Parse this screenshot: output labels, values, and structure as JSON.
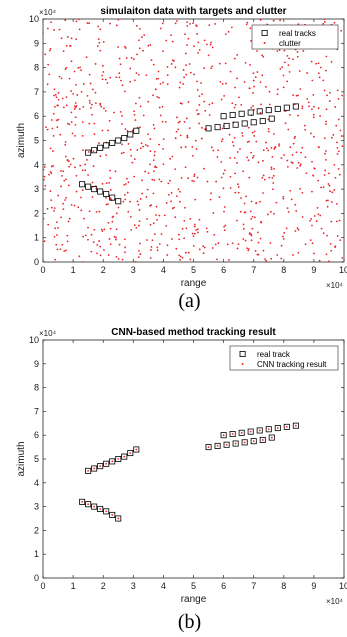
{
  "chart_data": [
    {
      "type": "scatter",
      "title": "simulaiton data with targets and clutter",
      "xlabel": "range",
      "ylabel": "azimuth",
      "x_exponent": "×10⁴",
      "y_exponent": "×10⁴",
      "xlim": [
        0,
        10
      ],
      "ylim": [
        0,
        10
      ],
      "xticks": [
        "0",
        "1",
        "2",
        "3",
        "4",
        "5",
        "6",
        "7",
        "8",
        "9",
        "10"
      ],
      "yticks": [
        "0",
        "1",
        "2",
        "3",
        "4",
        "5",
        "6",
        "7",
        "8",
        "9",
        "10"
      ],
      "legend_position": "top-right",
      "caption": "(a)",
      "series": [
        {
          "name": "real tracks",
          "marker": "square",
          "color": "#000000",
          "points": [
            [
              1.5,
              4.5
            ],
            [
              1.7,
              4.6
            ],
            [
              1.9,
              4.7
            ],
            [
              2.1,
              4.8
            ],
            [
              2.3,
              4.9
            ],
            [
              2.5,
              5.0
            ],
            [
              2.7,
              5.1
            ],
            [
              2.9,
              5.25
            ],
            [
              3.1,
              5.4
            ],
            [
              5.5,
              5.5
            ],
            [
              5.8,
              5.55
            ],
            [
              6.1,
              5.6
            ],
            [
              6.4,
              5.65
            ],
            [
              6.7,
              5.7
            ],
            [
              7.0,
              5.75
            ],
            [
              7.3,
              5.8
            ],
            [
              7.6,
              5.9
            ],
            [
              6.0,
              6.0
            ],
            [
              6.3,
              6.05
            ],
            [
              6.6,
              6.1
            ],
            [
              6.9,
              6.15
            ],
            [
              7.2,
              6.2
            ],
            [
              7.5,
              6.25
            ],
            [
              7.8,
              6.3
            ],
            [
              8.1,
              6.35
            ],
            [
              8.4,
              6.4
            ],
            [
              1.3,
              3.2
            ],
            [
              1.5,
              3.1
            ],
            [
              1.7,
              3.0
            ],
            [
              1.9,
              2.9
            ],
            [
              2.1,
              2.8
            ],
            [
              2.3,
              2.65
            ],
            [
              2.5,
              2.5
            ]
          ]
        },
        {
          "name": "clutter",
          "marker": "dot",
          "color": "#e8262c",
          "count": 1000,
          "distribution": "uniform",
          "range": [
            [
              0,
              10
            ],
            [
              0,
              10
            ]
          ]
        }
      ]
    },
    {
      "type": "scatter",
      "title": "CNN-based method tracking result",
      "xlabel": "range",
      "ylabel": "azimuth",
      "x_exponent": "×10⁴",
      "y_exponent": "×10⁴",
      "xlim": [
        0,
        10
      ],
      "ylim": [
        0,
        10
      ],
      "xticks": [
        "0",
        "1",
        "2",
        "3",
        "4",
        "5",
        "6",
        "7",
        "8",
        "9",
        "10"
      ],
      "yticks": [
        "0",
        "1",
        "2",
        "3",
        "4",
        "5",
        "6",
        "7",
        "8",
        "9",
        "10"
      ],
      "legend_position": "top-right",
      "caption": "(b)",
      "series": [
        {
          "name": "real track",
          "marker": "square",
          "color": "#000000",
          "same_points_as": "chart_data.0.series.0.points"
        },
        {
          "name": "CNN tracking result",
          "marker": "dot",
          "color": "#e8262c",
          "same_points_as": "chart_data.0.series.0.points"
        }
      ]
    }
  ]
}
